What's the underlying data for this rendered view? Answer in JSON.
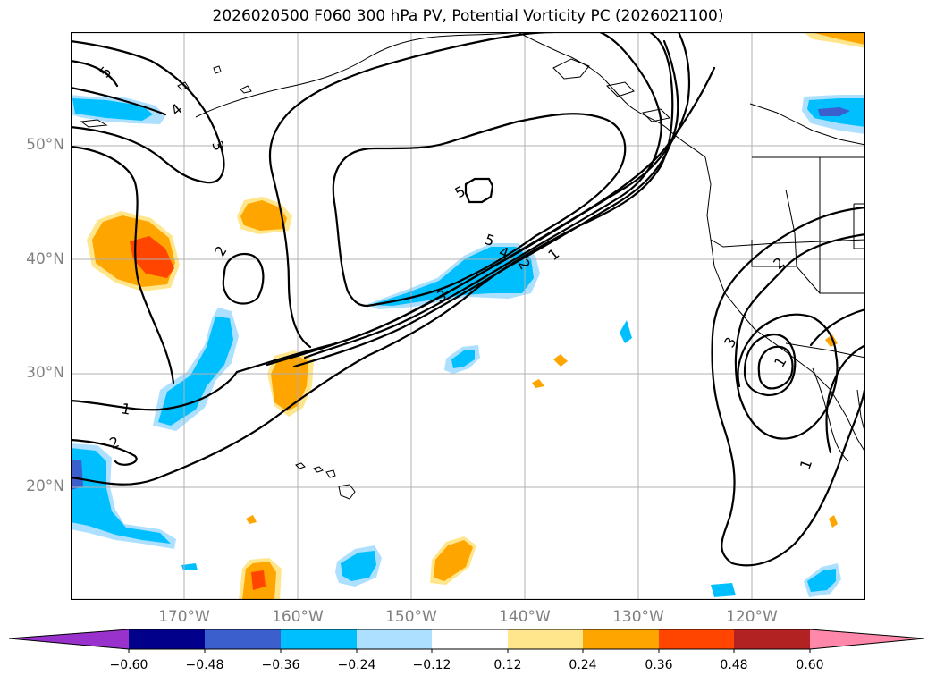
{
  "title": "2026020500 F060 300 hPa PV, Potential Vorticity PC (2026021100)",
  "lat_labels": [
    "50°N",
    "40°N",
    "30°N",
    "20°N"
  ],
  "lon_labels": [
    "170°W",
    "160°W",
    "150°W",
    "140°W",
    "130°W",
    "120°W"
  ],
  "colorbar": {
    "tick_labels": [
      "−0.60",
      "−0.48",
      "−0.36",
      "−0.24",
      "−0.12",
      "0.12",
      "0.24",
      "0.36",
      "0.48",
      "0.60"
    ],
    "colors": {
      "under": "#9932cc",
      "c1": "#00008b",
      "c2": "#3b5fcd",
      "c3": "#00bfff",
      "c4": "#addfff",
      "c5": "#ffffff",
      "c6": "#ffe68c",
      "c7": "#ffa500",
      "c8": "#ff4500",
      "c9": "#b22222",
      "over": "#ff88aa"
    }
  },
  "contour_labels": {
    "l5_nw": "5",
    "l4_nw": "4",
    "l3_nw": "3",
    "l2_w": "2",
    "l1_w": "1",
    "l2_sw": "2",
    "l5_center": "5",
    "l5_jet": "5",
    "l4_jet": "4",
    "l3_jet": "3",
    "l2_jet": "2",
    "l1_jet": "1",
    "l2_east": "2",
    "l3_east": "3",
    "l1_east_low": "1",
    "l1_east": "1"
  }
}
